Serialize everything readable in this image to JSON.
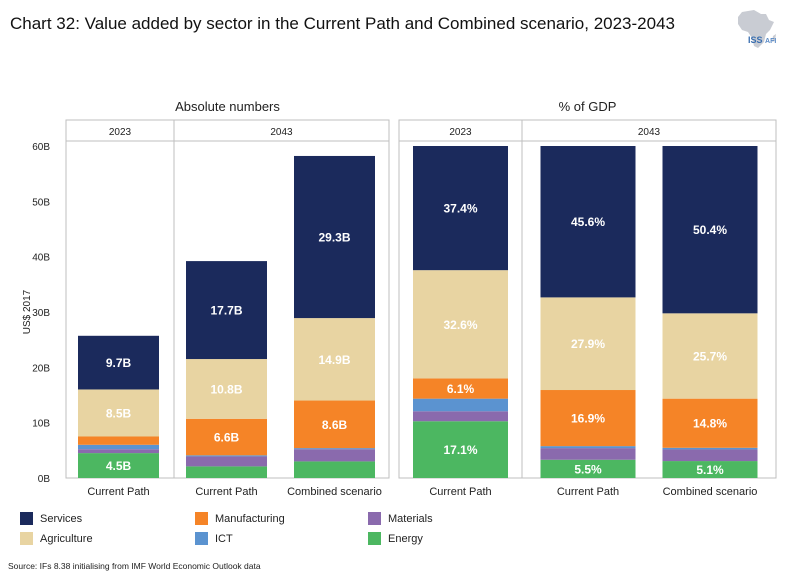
{
  "title": "Chart 32: Value added by sector in the Current Path and Combined scenario, 2023-2043",
  "logo": {
    "text": "ISS",
    "suffix": "AFI"
  },
  "source": "Source: IFs 8.38 initialising from IMF World Economic Outlook data",
  "colors": {
    "Services": "#1b2a5c",
    "Agriculture": "#e8d4a2",
    "Manufacturing": "#f58427",
    "ICT": "#5b93d0",
    "Materials": "#8a6aad",
    "Energy": "#4cb761"
  },
  "legend": [
    {
      "label": "Services",
      "color": "#1b2a5c"
    },
    {
      "label": "Manufacturing",
      "color": "#f58427"
    },
    {
      "label": "Materials",
      "color": "#8a6aad"
    },
    {
      "label": "Agriculture",
      "color": "#e8d4a2"
    },
    {
      "label": "ICT",
      "color": "#5b93d0"
    },
    {
      "label": "Energy",
      "color": "#4cb761"
    }
  ],
  "chart_data": [
    {
      "type": "bar",
      "stacked": true,
      "title": "Absolute numbers",
      "ylabel": "US$ 2017",
      "ylim": [
        0,
        60
      ],
      "yticks": [
        "0B",
        "10B",
        "20B",
        "30B",
        "40B",
        "50B",
        "60B"
      ],
      "groups": [
        {
          "label": "2023",
          "categories": [
            "Current Path"
          ]
        },
        {
          "label": "2043",
          "categories": [
            "Current Path",
            "Combined scenario"
          ]
        }
      ],
      "categories": [
        "Current Path",
        "Current Path",
        "Combined scenario"
      ],
      "series": [
        {
          "name": "Energy",
          "values": [
            4.5,
            2.1,
            3.0
          ],
          "labels": [
            "4.5B",
            "",
            ""
          ]
        },
        {
          "name": "Materials",
          "values": [
            0.7,
            1.8,
            2.2
          ],
          "labels": [
            "",
            "",
            ""
          ]
        },
        {
          "name": "ICT",
          "values": [
            0.8,
            0.2,
            0.2
          ],
          "labels": [
            "",
            "",
            ""
          ]
        },
        {
          "name": "Manufacturing",
          "values": [
            1.5,
            6.6,
            8.6
          ],
          "labels": [
            "",
            "6.6B",
            "8.6B"
          ]
        },
        {
          "name": "Agriculture",
          "values": [
            8.5,
            10.8,
            14.9
          ],
          "labels": [
            "8.5B",
            "10.8B",
            "14.9B"
          ]
        },
        {
          "name": "Services",
          "values": [
            9.7,
            17.7,
            29.3
          ],
          "labels": [
            "9.7B",
            "17.7B",
            "29.3B"
          ]
        }
      ]
    },
    {
      "type": "bar",
      "stacked": true,
      "title": "% of GDP",
      "ylim": [
        0,
        100
      ],
      "groups": [
        {
          "label": "2023",
          "categories": [
            "Current Path"
          ]
        },
        {
          "label": "2043",
          "categories": [
            "Current Path",
            "Combined scenario"
          ]
        }
      ],
      "categories": [
        "Current Path",
        "Current Path",
        "Combined scenario"
      ],
      "series": [
        {
          "name": "Energy",
          "values": [
            17.1,
            5.5,
            5.1
          ],
          "labels": [
            "17.1%",
            "5.5%",
            "5.1%"
          ]
        },
        {
          "name": "Materials",
          "values": [
            3.0,
            3.5,
            3.5
          ],
          "labels": [
            "",
            "",
            ""
          ]
        },
        {
          "name": "ICT",
          "values": [
            3.8,
            0.6,
            0.5
          ],
          "labels": [
            "",
            "",
            ""
          ]
        },
        {
          "name": "Manufacturing",
          "values": [
            6.1,
            16.9,
            14.8
          ],
          "labels": [
            "6.1%",
            "16.9%",
            "14.8%"
          ]
        },
        {
          "name": "Agriculture",
          "values": [
            32.6,
            27.9,
            25.7
          ],
          "labels": [
            "32.6%",
            "27.9%",
            "25.7%"
          ]
        },
        {
          "name": "Services",
          "values": [
            37.4,
            45.6,
            50.4
          ],
          "labels": [
            "37.4%",
            "45.6%",
            "50.4%"
          ]
        }
      ]
    }
  ]
}
